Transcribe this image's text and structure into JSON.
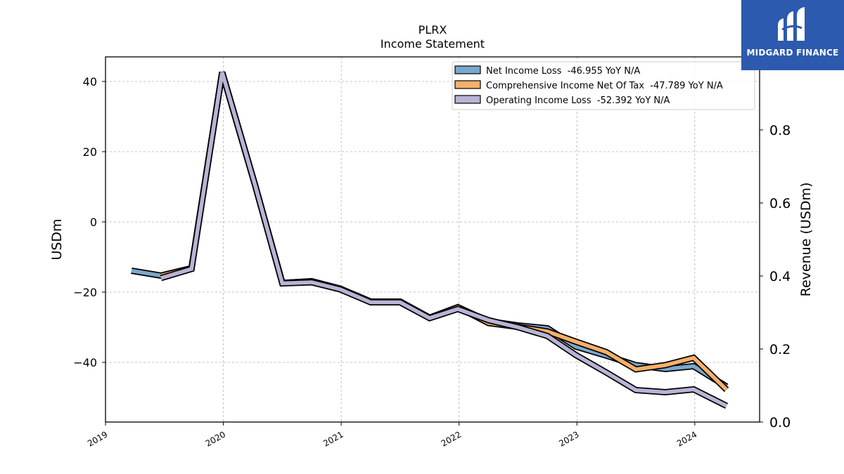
{
  "chart_data": {
    "type": "line",
    "title": "PLRX",
    "subtitle": "Income Statement",
    "ylabel": "USDm",
    "ylabel_right": "Revenue (USDm)",
    "ylim": [
      -57,
      47
    ],
    "yticks": [
      40,
      20,
      0,
      -20,
      -40
    ],
    "ytick_labels": [
      "40",
      "20",
      "0",
      "−20",
      "−40"
    ],
    "ylim_right": [
      0,
      1
    ],
    "yticks_right": [
      0.8,
      0.6,
      0.4,
      0.2,
      0.0
    ],
    "ytick_labels_right": [
      "0.8",
      "0.6",
      "0.4",
      "0.2",
      "0.0"
    ],
    "xlim": [
      2019.0,
      2024.55
    ],
    "xticks": [
      2019,
      2020,
      2021,
      2022,
      2023,
      2024
    ],
    "xtick_labels": [
      "2019",
      "2020",
      "2021",
      "2022",
      "2023",
      "2024"
    ],
    "grid": true,
    "legend_position": "top-right",
    "series": [
      {
        "name": "Net Income Loss  -46.955 YoY N/A",
        "color": "#7ba7cc",
        "x": [
          2019.22,
          2019.47,
          2019.73,
          2019.99,
          2020.27,
          2020.5,
          2020.75,
          2020.99,
          2021.25,
          2021.5,
          2021.75,
          2021.99,
          2022.25,
          2022.5,
          2022.75,
          2022.99,
          2023.25,
          2023.5,
          2023.75,
          2023.99,
          2024.27
        ],
        "y": [
          -13.9,
          -15.3,
          -13.2,
          42.6,
          10.4,
          -17.4,
          -16.9,
          -19.0,
          -22.7,
          -22.7,
          -27.3,
          -24.3,
          -28.3,
          -29.5,
          -30.3,
          -35.5,
          -38.1,
          -40.8,
          -41.9,
          -41.1,
          -46.9
        ]
      },
      {
        "name": "Comprehensive Income Net Of Tax  -47.789 YoY N/A",
        "color": "#f5b06a",
        "x": [
          2019.47,
          2019.73,
          2019.99,
          2020.27,
          2020.5,
          2020.75,
          2020.99,
          2021.25,
          2021.5,
          2021.75,
          2021.99,
          2022.25,
          2022.5,
          2022.75,
          2022.99,
          2023.25,
          2023.5,
          2023.75,
          2023.99,
          2024.27
        ],
        "y": [
          -15.3,
          -13.2,
          42.6,
          10.4,
          -17.4,
          -16.9,
          -19.0,
          -22.7,
          -22.7,
          -27.3,
          -24.3,
          -28.8,
          -29.9,
          -31.2,
          -34.1,
          -37.1,
          -42.0,
          -40.8,
          -38.7,
          -47.8
        ]
      },
      {
        "name": "Operating Income Loss  -52.392 YoY N/A",
        "color": "#b9b3d6",
        "x": [
          2019.47,
          2019.73,
          2019.99,
          2020.27,
          2020.5,
          2020.75,
          2020.99,
          2021.25,
          2021.5,
          2021.75,
          2021.99,
          2022.25,
          2022.5,
          2022.75,
          2022.99,
          2023.25,
          2023.5,
          2023.75,
          2023.99,
          2024.27
        ],
        "y": [
          -16.0,
          -13.4,
          42.6,
          10.4,
          -17.5,
          -17.2,
          -19.2,
          -22.9,
          -22.9,
          -27.4,
          -24.8,
          -28.0,
          -30.0,
          -32.5,
          -37.9,
          -42.9,
          -47.9,
          -48.5,
          -47.7,
          -52.4
        ]
      }
    ]
  },
  "logo": {
    "text": "MIDGARD FINANCE",
    "color": "#2c5aae"
  }
}
